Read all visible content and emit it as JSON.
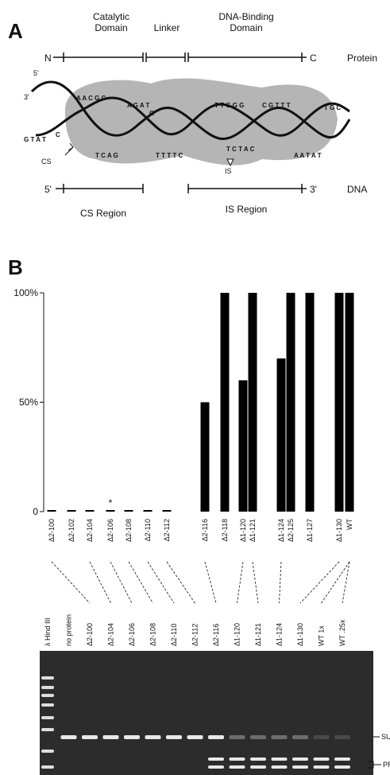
{
  "panel_a": {
    "letter": "A",
    "catalytic_domain": [
      "Catalytic",
      "Domain"
    ],
    "linker": "Linker",
    "dna_binding_domain": [
      "DNA-Binding",
      "Domain"
    ],
    "n_term": "N",
    "c_term": "C",
    "protein": "Protein",
    "five_prime_top": "5'",
    "three_prime_left": "3'",
    "five_prime_dna": "5'",
    "three_prime_dna": "3'",
    "dna": "DNA",
    "cs_region": "CS Region",
    "is_region": "IS Region",
    "cs": "CS",
    "is": "IS",
    "sequences": [
      "G T A T",
      "C",
      "A A C G C",
      "A G A T",
      "G",
      "T C A G",
      "T T T T C",
      "T T G G G",
      "C G T T T",
      "T G C",
      "T C T A C",
      "A A T A T"
    ]
  },
  "chart_data": {
    "type": "bar",
    "letter": "B",
    "categories": [
      "Δ2-100",
      "Δ2-102",
      "Δ2-104",
      "Δ2-106",
      "Δ2-108",
      "Δ2-110",
      "Δ2-112",
      "Δ2-116",
      "Δ2-118",
      "Δ1-120",
      "Δ1-121",
      "Δ1-124",
      "Δ2-125",
      "Δ1-127",
      "Δ1-130",
      "WT"
    ],
    "values": [
      0,
      0,
      0,
      0,
      0,
      0,
      0,
      50,
      100,
      60,
      100,
      70,
      100,
      100,
      100,
      100
    ],
    "color": "#000000",
    "ylim": [
      0,
      100
    ],
    "yticks": [
      0,
      {
        "value": 50,
        "label": "50%"
      },
      {
        "value": 100,
        "label": "100%"
      }
    ],
    "annotation": "*"
  },
  "gel": {
    "lanes": [
      "λ Hind III",
      "no protein",
      "Δ2-100",
      "Δ2-104",
      "Δ2-106",
      "Δ2-108",
      "Δ2-110",
      "Δ2-112",
      "Δ2-116",
      "Δ1-120",
      "Δ1-121",
      "Δ1-124",
      "Δ1-130",
      "WT 1x",
      "WT .25x"
    ],
    "substrate": "SUBSTR",
    "product": "PRODUC"
  }
}
